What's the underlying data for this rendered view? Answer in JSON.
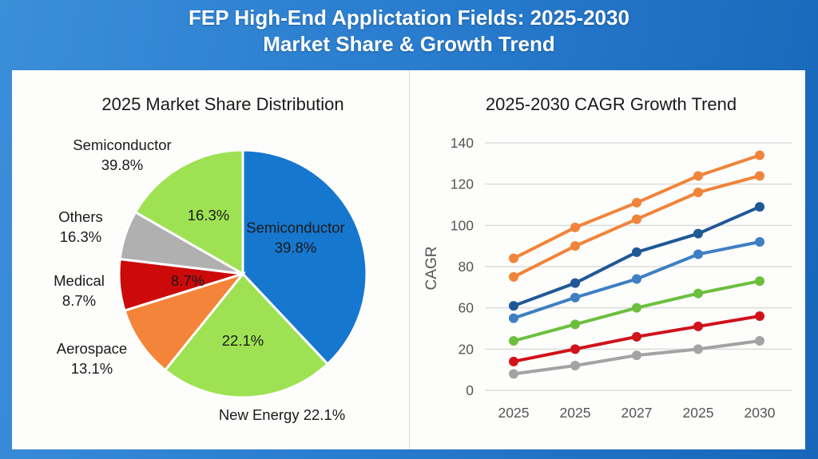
{
  "title_lines": [
    "FEP High-End Applictation Fields: 2025-2030",
    "Market Share & Growth Trend"
  ],
  "colors": {
    "semiconductor": "#1677cf",
    "new_energy": "#9ee253",
    "aerospace": "#f3843a",
    "medical": "#cc0a0a",
    "others": "#b0b0b0",
    "top_green": "#9ee253"
  },
  "chart_data": [
    {
      "type": "pie",
      "title": "2025 Market Share Distribution",
      "start": "12 o'clock, clockwise",
      "slices": [
        {
          "key": "semiconductor",
          "inner_label": [
            "Semiconductor",
            "39.8%"
          ],
          "label_value": 39.8,
          "visual_share": 38.0,
          "color": "#1677cf",
          "inner_text_color": "#ffffff"
        },
        {
          "key": "new_energy",
          "inner_label": [
            "22.1%"
          ],
          "label_value": 22.1,
          "visual_share": 22.8,
          "color": "#9ee253",
          "inner_text_color": "#1a1a1a"
        },
        {
          "key": "aerospace",
          "inner_label": [],
          "label_value": 13.1,
          "visual_share": 9.4,
          "color": "#f3843a",
          "inner_text_color": "#1a1a1a"
        },
        {
          "key": "medical",
          "inner_label": [
            "8.7%"
          ],
          "label_value": 8.7,
          "visual_share": 6.7,
          "color": "#cc0a0a",
          "inner_text_color": "#ffffff"
        },
        {
          "key": "others",
          "inner_label": [],
          "label_value": 16.3,
          "visual_share": 6.4,
          "color": "#b0b0b0",
          "inner_text_color": "#1a1a1a"
        },
        {
          "key": "top_green",
          "inner_label": [
            "16.3%"
          ],
          "label_value": 16.3,
          "visual_share": 16.7,
          "color": "#9ee253",
          "inner_text_color": "#1a1a1a"
        }
      ],
      "outer_labels": [
        {
          "key": "semiconductor",
          "lines": [
            "Semiconductor",
            "39.8%"
          ]
        },
        {
          "key": "others",
          "lines": [
            "Others",
            "16.3%"
          ]
        },
        {
          "key": "medical",
          "lines": [
            "Medical",
            "8.7%"
          ]
        },
        {
          "key": "aerospace",
          "lines": [
            "Aerospace",
            "13.1%"
          ]
        },
        {
          "key": "new_energy",
          "lines": [
            "New Energy 22.1%"
          ]
        }
      ]
    },
    {
      "type": "line",
      "title": "2025-2030 CAGR Growth Trend",
      "xlabel": "",
      "ylabel": "CAGR",
      "categories": [
        "2025",
        "2025",
        "2027",
        "2025",
        "2030"
      ],
      "y_gridlines": [
        140,
        120,
        100,
        80,
        60,
        40,
        20
      ],
      "y_tick_labels": [
        "140",
        "120",
        "100",
        "80",
        "60",
        "20",
        "0"
      ],
      "ylim": [
        20,
        140
      ],
      "grid": true,
      "legend": "none",
      "series": [
        {
          "name": "orange-upper",
          "color": "#f0843a",
          "values": [
            84,
            99,
            111,
            124,
            134
          ]
        },
        {
          "name": "orange-lower",
          "color": "#f0843a",
          "values": [
            75,
            90,
            103,
            116,
            124
          ]
        },
        {
          "name": "dark-blue",
          "color": "#1f5896",
          "values": [
            61,
            72,
            87,
            96,
            109
          ]
        },
        {
          "name": "light-blue",
          "color": "#3f7fc4",
          "values": [
            55,
            65,
            74,
            86,
            92
          ]
        },
        {
          "name": "green",
          "color": "#6cbf3e",
          "values": [
            44,
            52,
            60,
            67,
            73
          ]
        },
        {
          "name": "red",
          "color": "#d0121a",
          "values": [
            34,
            40,
            46,
            51,
            56
          ]
        },
        {
          "name": "gray",
          "color": "#a3a3a3",
          "values": [
            28,
            32,
            37,
            40,
            44
          ]
        }
      ]
    }
  ]
}
